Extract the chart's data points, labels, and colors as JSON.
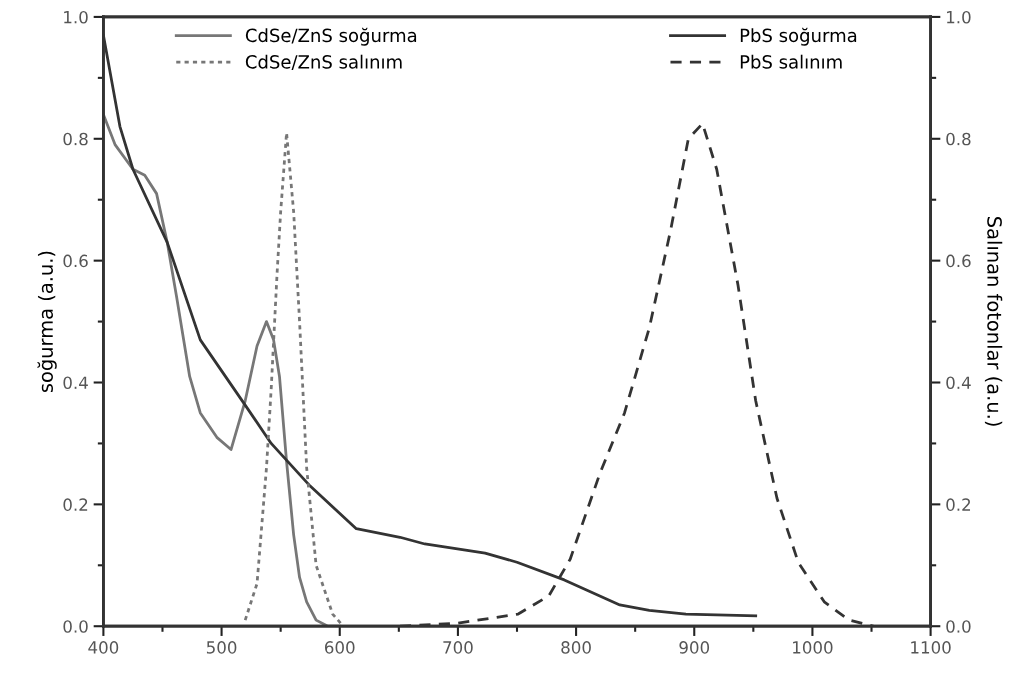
{
  "chart_data": {
    "type": "line",
    "ylabel": "soğurma (a.u.)",
    "y2label": "Salınan fotonlar (a.u.)",
    "xlim": [
      400,
      1100
    ],
    "xticks": [
      400,
      500,
      600,
      700,
      800,
      900,
      1000,
      1100
    ],
    "ylim": [
      0,
      1
    ],
    "yticks": [
      {
        "value": 0,
        "label": "0.0"
      },
      {
        "value": 0.2,
        "label": "0.2"
      },
      {
        "value": 0.4,
        "label": "0.4"
      },
      {
        "value": 0.6,
        "label": "0.6"
      },
      {
        "value": 0.8,
        "label": "0.8"
      },
      {
        "value": 1,
        "label": "1.0"
      }
    ],
    "y2lim": [
      0,
      1
    ],
    "y2ticks": [
      {
        "value": 0,
        "label": "0.0"
      },
      {
        "value": 0.2,
        "label": "0.2"
      },
      {
        "value": 0.4,
        "label": "0.4"
      },
      {
        "value": 0.6,
        "label": "0.6"
      },
      {
        "value": 0.8,
        "label": "0.8"
      },
      {
        "value": 1,
        "label": "1.0"
      }
    ],
    "legend": "top",
    "grid": false,
    "marker": "none",
    "series": [
      {
        "name": "CdSe/ZnS soğurma",
        "color": "#777777",
        "line_style": "solid",
        "x": [
          400,
          410,
          425,
          435,
          445,
          454,
          462,
          473,
          482,
          496,
          508,
          520,
          530,
          538,
          544,
          549,
          555,
          561,
          566,
          572,
          580,
          590,
          600
        ],
        "values": [
          0.84,
          0.79,
          0.75,
          0.74,
          0.71,
          0.63,
          0.54,
          0.41,
          0.35,
          0.31,
          0.29,
          0.37,
          0.46,
          0.5,
          0.47,
          0.41,
          0.27,
          0.15,
          0.08,
          0.04,
          0.01,
          0.0,
          0.0
        ]
      },
      {
        "name": "CdSe/ZnS salınım",
        "color": "#777777",
        "line_style": "dotted",
        "axis": "y2",
        "x": [
          520,
          530,
          538,
          542,
          547,
          550,
          555,
          561,
          566,
          572,
          580,
          594,
          603
        ],
        "values": [
          0.01,
          0.07,
          0.26,
          0.39,
          0.58,
          0.68,
          0.81,
          0.68,
          0.5,
          0.26,
          0.1,
          0.02,
          0.0
        ]
      },
      {
        "name": "PbS soğurma",
        "color": "#333333",
        "line_style": "solid",
        "x": [
          400,
          414,
          425,
          454,
          482,
          521,
          542,
          575,
          614,
          651,
          672,
          723,
          750,
          790,
          837,
          862,
          893,
          952
        ],
        "values": [
          0.97,
          0.82,
          0.75,
          0.63,
          0.47,
          0.36,
          0.3,
          0.23,
          0.16,
          0.146,
          0.135,
          0.12,
          0.105,
          0.076,
          0.035,
          0.026,
          0.02,
          0.017
        ]
      },
      {
        "name": "PbS salınım",
        "color": "#333333",
        "line_style": "dashed",
        "axis": "y2",
        "x": [
          651,
          700,
          751,
          777,
          795,
          820,
          841,
          862,
          880,
          895,
          907,
          919,
          937,
          952,
          970,
          988,
          1010,
          1031,
          1052
        ],
        "values": [
          0.0,
          0.005,
          0.02,
          0.05,
          0.11,
          0.25,
          0.35,
          0.49,
          0.65,
          0.8,
          0.825,
          0.75,
          0.56,
          0.37,
          0.21,
          0.105,
          0.04,
          0.01,
          0.0
        ]
      }
    ]
  }
}
